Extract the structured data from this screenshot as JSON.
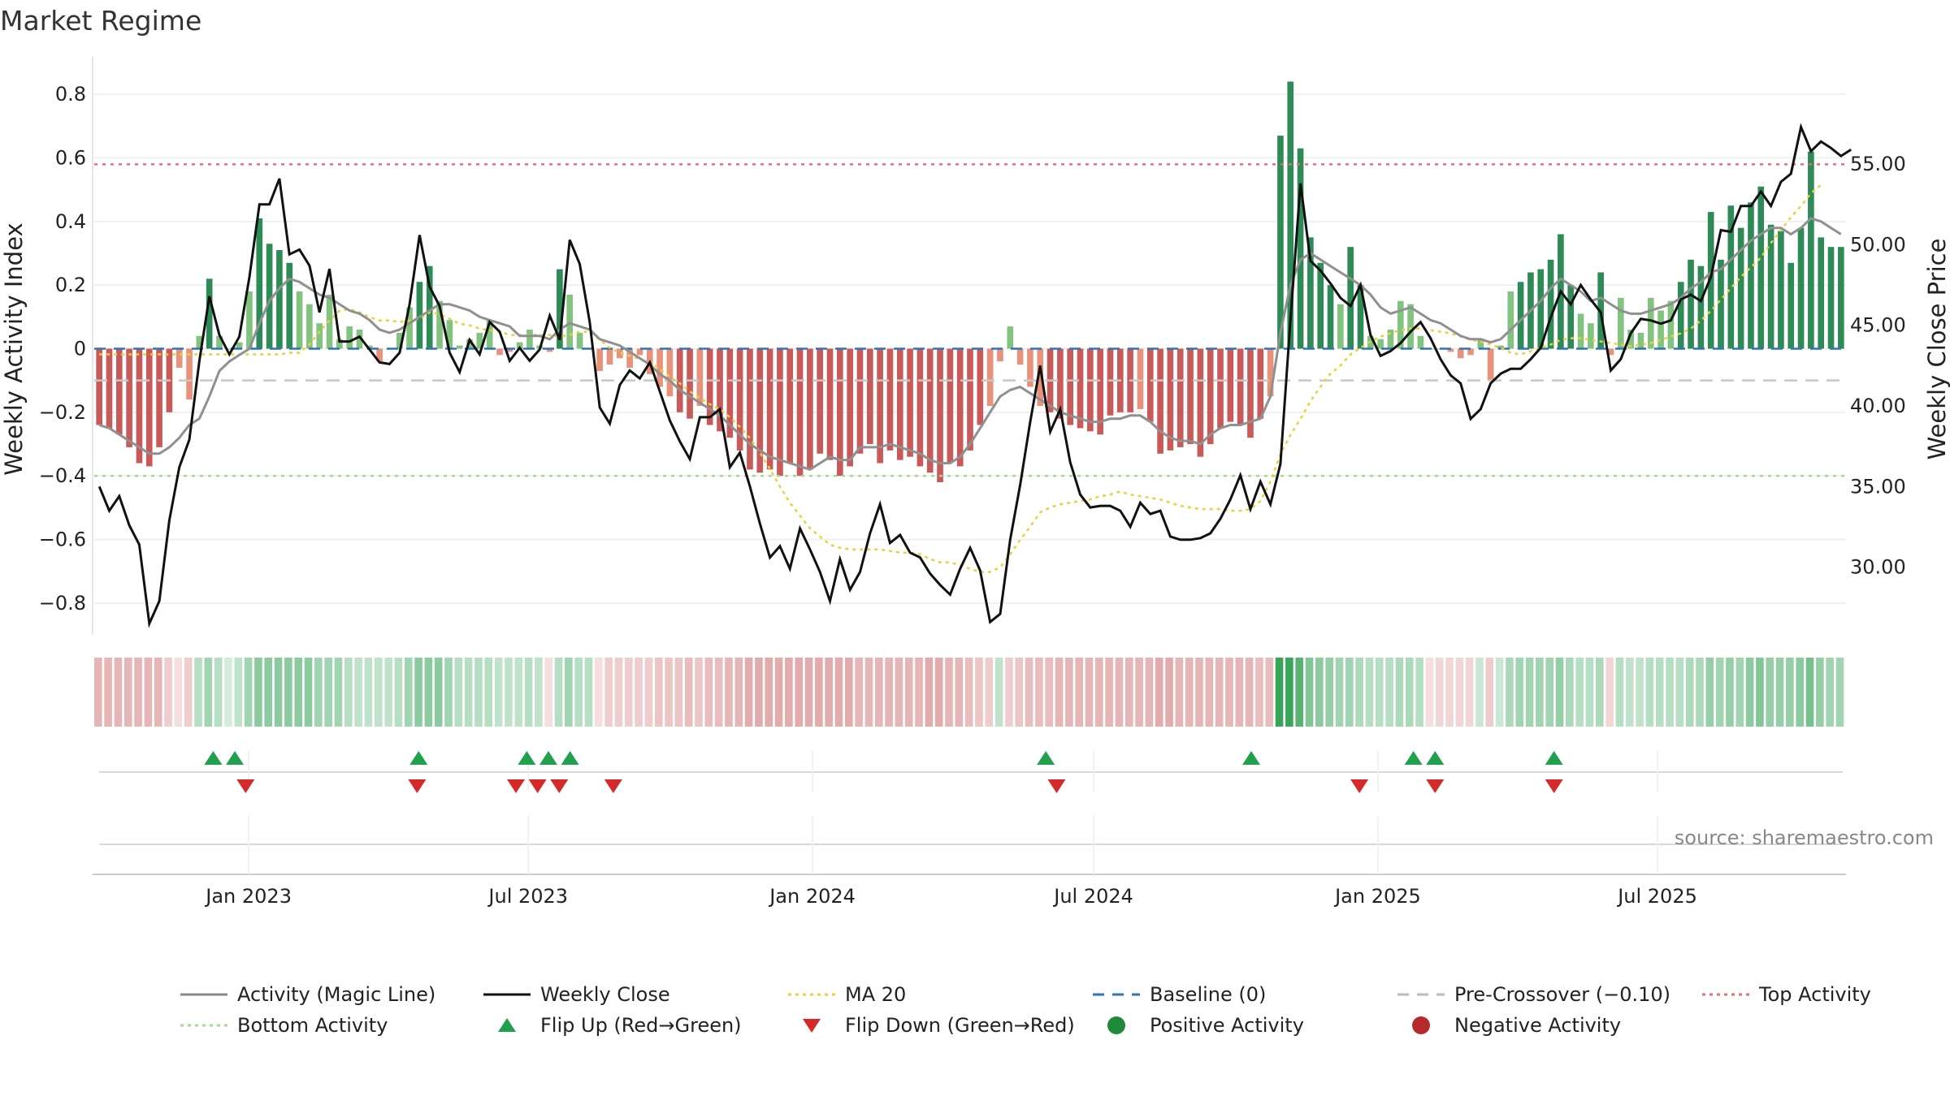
{
  "chart_data": {
    "type": "bar",
    "title": "Market Regime",
    "ylabel": "Weekly Activity Index",
    "y2label": "Weekly Close Price",
    "ylim": [
      -0.9,
      0.9
    ],
    "y2lim": [
      25.8,
      61.3
    ],
    "yticks": [
      -0.8,
      -0.6,
      -0.4,
      -0.2,
      0,
      0.2,
      0.4,
      0.6,
      0.8
    ],
    "ytick_labels": [
      "−0.8",
      "−0.6",
      "−0.4",
      "−0.2",
      "0",
      "0.2",
      "0.4",
      "0.6",
      "0.8"
    ],
    "y2ticks": [
      30,
      35,
      40,
      45,
      50,
      55
    ],
    "y2tick_labels": [
      "30.00",
      "35.00",
      "40.00",
      "45.00",
      "50.00",
      "55.00"
    ],
    "x_start": "2022-09-23",
    "x_end": "2025-10-31",
    "xticks": [
      "2023-01-01",
      "2023-07-01",
      "2024-01-01",
      "2024-07-01",
      "2025-01-01",
      "2025-07-01"
    ],
    "xtick_labels": [
      "Jan 2023",
      "Jul 2023",
      "Jan 2024",
      "Jul 2024",
      "Jan 2025",
      "Jul 2025"
    ],
    "grid": true,
    "legend_position": "bottom",
    "top_activity_level": 0.58,
    "bottom_activity_level": -0.4,
    "pre_crossover_level": -0.1,
    "baseline_level": 0,
    "activity": [
      -0.24,
      -0.25,
      -0.27,
      -0.31,
      -0.36,
      -0.37,
      -0.31,
      -0.2,
      -0.06,
      -0.16,
      0.04,
      0.22,
      0.04,
      0,
      0.02,
      0.18,
      0.41,
      0.33,
      0.31,
      0.27,
      0.18,
      0.14,
      0.08,
      0.17,
      0.03,
      0.07,
      0.06,
      0.01,
      -0.04,
      0,
      0.05,
      0.13,
      0.21,
      0.26,
      0.15,
      0.09,
      0.01,
      0.03,
      0.05,
      0.09,
      -0.02,
      -0.01,
      0.02,
      0.06,
      0.01,
      -0.01,
      0.25,
      0.17,
      0.05,
      0,
      -0.07,
      -0.05,
      -0.03,
      -0.06,
      -0.02,
      -0.08,
      -0.12,
      -0.15,
      -0.2,
      -0.22,
      -0.18,
      -0.24,
      -0.26,
      -0.28,
      -0.32,
      -0.38,
      -0.39,
      -0.38,
      -0.4,
      -0.36,
      -0.4,
      -0.38,
      -0.33,
      -0.35,
      -0.4,
      -0.37,
      -0.33,
      -0.3,
      -0.36,
      -0.32,
      -0.35,
      -0.34,
      -0.37,
      -0.39,
      -0.42,
      -0.36,
      -0.37,
      -0.32,
      -0.24,
      -0.18,
      -0.04,
      0.07,
      -0.05,
      -0.12,
      -0.18,
      -0.2,
      -0.22,
      -0.24,
      -0.25,
      -0.26,
      -0.27,
      -0.21,
      -0.2,
      -0.2,
      -0.19,
      -0.23,
      -0.33,
      -0.32,
      -0.31,
      -0.3,
      -0.34,
      -0.3,
      -0.25,
      -0.23,
      -0.24,
      -0.28,
      -0.22,
      -0.15,
      0.67,
      0.84,
      0.63,
      0.35,
      0.27,
      0.2,
      0.14,
      0.32,
      0.2,
      0.04,
      0.03,
      0.06,
      0.15,
      0.14,
      0.04,
      0,
      0,
      -0.01,
      -0.03,
      -0.02,
      0.03,
      -0.1,
      0.01,
      0.18,
      0.21,
      0.24,
      0.25,
      0.28,
      0.36,
      0.2,
      0.11,
      0.08,
      0.24,
      -0.02,
      0.16,
      0.06,
      0.05,
      0.16,
      0.12,
      0.15,
      0.21,
      0.28,
      0.26,
      0.43,
      0.28,
      0.45,
      0.38,
      0.46,
      0.51,
      0.39,
      0.37,
      0.27,
      0.38,
      0.62,
      0.35,
      0.32,
      0.32
    ],
    "magic_line": [
      -0.24,
      -0.25,
      -0.27,
      -0.29,
      -0.31,
      -0.33,
      -0.33,
      -0.31,
      -0.28,
      -0.24,
      -0.22,
      -0.15,
      -0.07,
      -0.04,
      -0.02,
      0,
      0.08,
      0.15,
      0.19,
      0.22,
      0.21,
      0.19,
      0.17,
      0.16,
      0.14,
      0.12,
      0.11,
      0.09,
      0.06,
      0.05,
      0.06,
      0.08,
      0.1,
      0.12,
      0.14,
      0.14,
      0.13,
      0.12,
      0.1,
      0.09,
      0.08,
      0.07,
      0.04,
      0.04,
      0.04,
      0.03,
      0.06,
      0.08,
      0.07,
      0.06,
      0.03,
      0.02,
      0.01,
      -0.01,
      -0.03,
      -0.05,
      -0.08,
      -0.1,
      -0.13,
      -0.15,
      -0.17,
      -0.19,
      -0.21,
      -0.24,
      -0.27,
      -0.3,
      -0.32,
      -0.34,
      -0.35,
      -0.36,
      -0.37,
      -0.38,
      -0.36,
      -0.34,
      -0.35,
      -0.35,
      -0.31,
      -0.31,
      -0.31,
      -0.3,
      -0.31,
      -0.32,
      -0.33,
      -0.35,
      -0.36,
      -0.36,
      -0.34,
      -0.3,
      -0.25,
      -0.2,
      -0.15,
      -0.13,
      -0.12,
      -0.14,
      -0.16,
      -0.18,
      -0.2,
      -0.21,
      -0.22,
      -0.23,
      -0.23,
      -0.22,
      -0.22,
      -0.21,
      -0.21,
      -0.23,
      -0.26,
      -0.28,
      -0.29,
      -0.29,
      -0.3,
      -0.27,
      -0.25,
      -0.24,
      -0.24,
      -0.23,
      -0.22,
      -0.15,
      0.05,
      0.2,
      0.28,
      0.3,
      0.28,
      0.26,
      0.24,
      0.22,
      0.2,
      0.17,
      0.13,
      0.11,
      0.12,
      0.13,
      0.11,
      0.09,
      0.08,
      0.06,
      0.04,
      0.03,
      0.03,
      0.02,
      0.03,
      0.06,
      0.09,
      0.12,
      0.15,
      0.19,
      0.22,
      0.2,
      0.18,
      0.15,
      0.16,
      0.14,
      0.12,
      0.11,
      0.11,
      0.12,
      0.13,
      0.14,
      0.16,
      0.19,
      0.21,
      0.24,
      0.25,
      0.28,
      0.31,
      0.34,
      0.36,
      0.38,
      0.38,
      0.36,
      0.38,
      0.41,
      0.4,
      0.38,
      0.36
    ],
    "weekly_close": [
      35,
      33.5,
      34.4,
      32.6,
      31.4,
      26.5,
      27.9,
      32.9,
      36.2,
      37.9,
      42.8,
      46.8,
      44.4,
      43.2,
      44.3,
      48,
      52.5,
      52.5,
      54.1,
      49.4,
      49.7,
      48.7,
      45.8,
      48.5,
      44,
      44,
      44.3,
      43.5,
      42.7,
      42.6,
      43.3,
      46.3,
      50.6,
      47.4,
      46.2,
      43.3,
      42.1,
      44.1,
      43.2,
      45.2,
      44.6,
      42.8,
      43.6,
      42.8,
      43.5,
      45.6,
      44.1,
      50.3,
      48.8,
      45.2,
      39.9,
      38.9,
      41.3,
      42.2,
      41.7,
      42.7,
      40.9,
      39.1,
      37.8,
      36.7,
      39.3,
      39.3,
      39.8,
      36.2,
      37.1,
      35,
      32.7,
      30.6,
      31.3,
      29.9,
      32.4,
      31.1,
      29.7,
      27.9,
      30.5,
      28.6,
      29.7,
      32.1,
      33.9,
      31.5,
      32,
      30.9,
      30.6,
      29.6,
      28.9,
      28.3,
      29.9,
      31.2,
      29.8,
      26.6,
      27.1,
      31.7,
      35.1,
      39,
      42.5,
      38.4,
      39.8,
      36.5,
      34.5,
      33.7,
      33.8,
      33.8,
      33.5,
      32.5,
      34,
      33.3,
      33.5,
      31.9,
      31.7,
      31.7,
      31.8,
      32.1,
      33,
      34.2,
      35.7,
      33.6,
      35.3,
      33.9,
      36.4,
      45.3,
      53.8,
      49,
      48.4,
      47.6,
      46.7,
      46.2,
      47.5,
      44.4,
      43.1,
      43.4,
      43.9,
      44.6,
      45.2,
      44.2,
      42.9,
      41.9,
      41.4,
      39.2,
      39.8,
      41.4,
      42,
      42.3,
      42.3,
      42.9,
      43.6,
      45.5,
      47.1,
      46.3,
      47.5,
      46.6,
      45.8,
      42.2,
      42.9,
      44.5,
      45.4,
      45.3,
      45.1,
      45.3,
      46.6,
      46.9,
      46.5,
      48,
      50.9,
      50.8,
      52.4,
      52.4,
      53.3,
      52.4,
      53.9,
      54.4,
      57.3,
      55.8,
      56.4,
      56,
      55.5,
      55.9
    ],
    "ma20": [
      43.2,
      43.2,
      43.2,
      43.2,
      43.2,
      43.2,
      43.2,
      43.2,
      43.2,
      43.2,
      43.2,
      43.2,
      43.2,
      43.2,
      43.2,
      43.2,
      43.2,
      43.2,
      43.2,
      43.3,
      43.3,
      43.8,
      44.6,
      45.3,
      45.9,
      46,
      45.8,
      45.5,
      45.3,
      45.3,
      45.2,
      45.3,
      45.4,
      45.8,
      45.7,
      45.4,
      45.1,
      45,
      44.8,
      44.7,
      44.6,
      44.4,
      44.4,
      44.4,
      44.4,
      44.4,
      44.3,
      44.4,
      44.6,
      44.6,
      44.1,
      43.6,
      43.3,
      43.1,
      42.9,
      42.7,
      42.3,
      41.8,
      41.4,
      40.9,
      40.5,
      40.1,
      39.8,
      39.3,
      38.7,
      38,
      37.1,
      36.1,
      35,
      34,
      33.2,
      32.4,
      31.9,
      31.4,
      31.2,
      31.1,
      31.1,
      31.1,
      31.1,
      31,
      30.9,
      30.9,
      30.8,
      30.5,
      30.3,
      30.3,
      30.1,
      29.9,
      29.7,
      29.7,
      30,
      30.8,
      31.7,
      32.5,
      33.4,
      33.7,
      33.9,
      34,
      34.1,
      34.2,
      34.4,
      34.5,
      34.7,
      34.5,
      34.4,
      34.3,
      34.2,
      34,
      33.8,
      33.7,
      33.6,
      33.6,
      33.6,
      33.5,
      33.5,
      33.6,
      34.1,
      35.3,
      37,
      38.2,
      39.2,
      40.3,
      41.2,
      42,
      42.5,
      43.2,
      43.6,
      44,
      44.3,
      44.5,
      44.7,
      44.8,
      44.8,
      44.7,
      44.6,
      44.5,
      44.3,
      44.1,
      44,
      43.8,
      43.6,
      43.3,
      43.2,
      43.4,
      43.6,
      43.8,
      44.1,
      44.2,
      44.2,
      44.1,
      44,
      43.9,
      43.8,
      43.7,
      43.8,
      43.9,
      44.1,
      44.3,
      44.5,
      44.8,
      45.3,
      45.9,
      46.6,
      47.3,
      48,
      48.6,
      49.2,
      50.1,
      50.9,
      51.7,
      52.4,
      53.2,
      53.7
    ],
    "strip_levels": [
      -0.45,
      -0.45,
      -0.45,
      -0.45,
      -0.45,
      -0.45,
      -0.45,
      -0.3,
      -0.2,
      -0.3,
      0.35,
      0.45,
      0.35,
      0.2,
      0.3,
      0.45,
      0.55,
      0.55,
      0.55,
      0.55,
      0.55,
      0.55,
      0.45,
      0.45,
      0.45,
      0.35,
      0.3,
      0.3,
      0.3,
      0.3,
      0.35,
      0.45,
      0.55,
      0.55,
      0.55,
      0.45,
      0.35,
      0.35,
      0.35,
      0.35,
      0.3,
      0.3,
      0.3,
      0.35,
      0.3,
      -0.2,
      0.35,
      0.45,
      0.35,
      0.35,
      -0.2,
      -0.3,
      -0.3,
      -0.3,
      -0.3,
      -0.3,
      -0.35,
      -0.35,
      -0.35,
      -0.4,
      -0.35,
      -0.4,
      -0.4,
      -0.45,
      -0.45,
      -0.5,
      -0.5,
      -0.5,
      -0.5,
      -0.5,
      -0.5,
      -0.5,
      -0.5,
      -0.5,
      -0.5,
      -0.5,
      -0.45,
      -0.45,
      -0.45,
      -0.45,
      -0.45,
      -0.45,
      -0.45,
      -0.5,
      -0.5,
      -0.45,
      -0.45,
      -0.4,
      -0.35,
      -0.3,
      0.3,
      -0.3,
      -0.35,
      -0.4,
      -0.4,
      -0.4,
      -0.45,
      -0.45,
      -0.45,
      -0.45,
      -0.45,
      -0.45,
      -0.45,
      -0.45,
      -0.45,
      -0.45,
      -0.5,
      -0.5,
      -0.45,
      -0.45,
      -0.45,
      -0.45,
      -0.45,
      -0.45,
      -0.45,
      -0.45,
      -0.4,
      -0.4,
      0.95,
      0.95,
      0.8,
      0.6,
      0.55,
      0.5,
      0.45,
      0.45,
      0.4,
      0.35,
      0.35,
      0.35,
      0.4,
      0.4,
      0.35,
      -0.2,
      -0.25,
      -0.25,
      -0.25,
      -0.25,
      0.25,
      -0.3,
      0.25,
      0.4,
      0.45,
      0.45,
      0.45,
      0.45,
      0.5,
      0.4,
      0.35,
      0.35,
      0.4,
      -0.25,
      0.35,
      0.3,
      0.3,
      0.35,
      0.35,
      0.35,
      0.35,
      0.4,
      0.4,
      0.5,
      0.45,
      0.5,
      0.45,
      0.55,
      0.6,
      0.5,
      0.5,
      0.5,
      0.55,
      0.65,
      0.5,
      0.45,
      0.45
    ],
    "flip_up": [
      "2022-12-09",
      "2022-12-23",
      "2023-04-21",
      "2023-06-30",
      "2023-07-14",
      "2023-07-28",
      "2024-05-31",
      "2024-10-11",
      "2025-01-24",
      "2025-02-07",
      "2025-04-25"
    ],
    "flip_down": [
      "2022-12-30",
      "2023-04-20",
      "2023-06-23",
      "2023-07-07",
      "2023-07-21",
      "2023-08-25",
      "2024-06-07",
      "2024-12-20",
      "2025-02-07",
      "2025-04-25"
    ],
    "legend": [
      {
        "label": "Activity (Magic Line)",
        "kind": "line",
        "color": "#888888",
        "dash": "solid"
      },
      {
        "label": "Weekly Close",
        "kind": "line",
        "color": "#111111",
        "dash": "solid"
      },
      {
        "label": "MA 20",
        "kind": "line",
        "color": "#e8d23a",
        "dash": "dotted"
      },
      {
        "label": "Baseline (0)",
        "kind": "line",
        "color": "#2f74b5",
        "dash": "dashed"
      },
      {
        "label": "Pre-Crossover (−0.10)",
        "kind": "line",
        "color": "#bbbbbb",
        "dash": "dashed"
      },
      {
        "label": "Top Activity",
        "kind": "line",
        "color": "#e0707a",
        "dash": "dotted"
      },
      {
        "label": "Bottom Activity",
        "kind": "line",
        "color": "#a6d98a",
        "dash": "dotted"
      },
      {
        "label": "Flip Up (Red→Green)",
        "kind": "triangle-up",
        "color": "#21a04e"
      },
      {
        "label": "Flip Down (Green→Red)",
        "kind": "triangle-down",
        "color": "#d62a2a"
      },
      {
        "label": "Positive Activity",
        "kind": "dot",
        "color": "#1e8a3a"
      },
      {
        "label": "Negative Activity",
        "kind": "dot",
        "color": "#b52a2a"
      }
    ],
    "source": "source: sharemaestro.com"
  }
}
